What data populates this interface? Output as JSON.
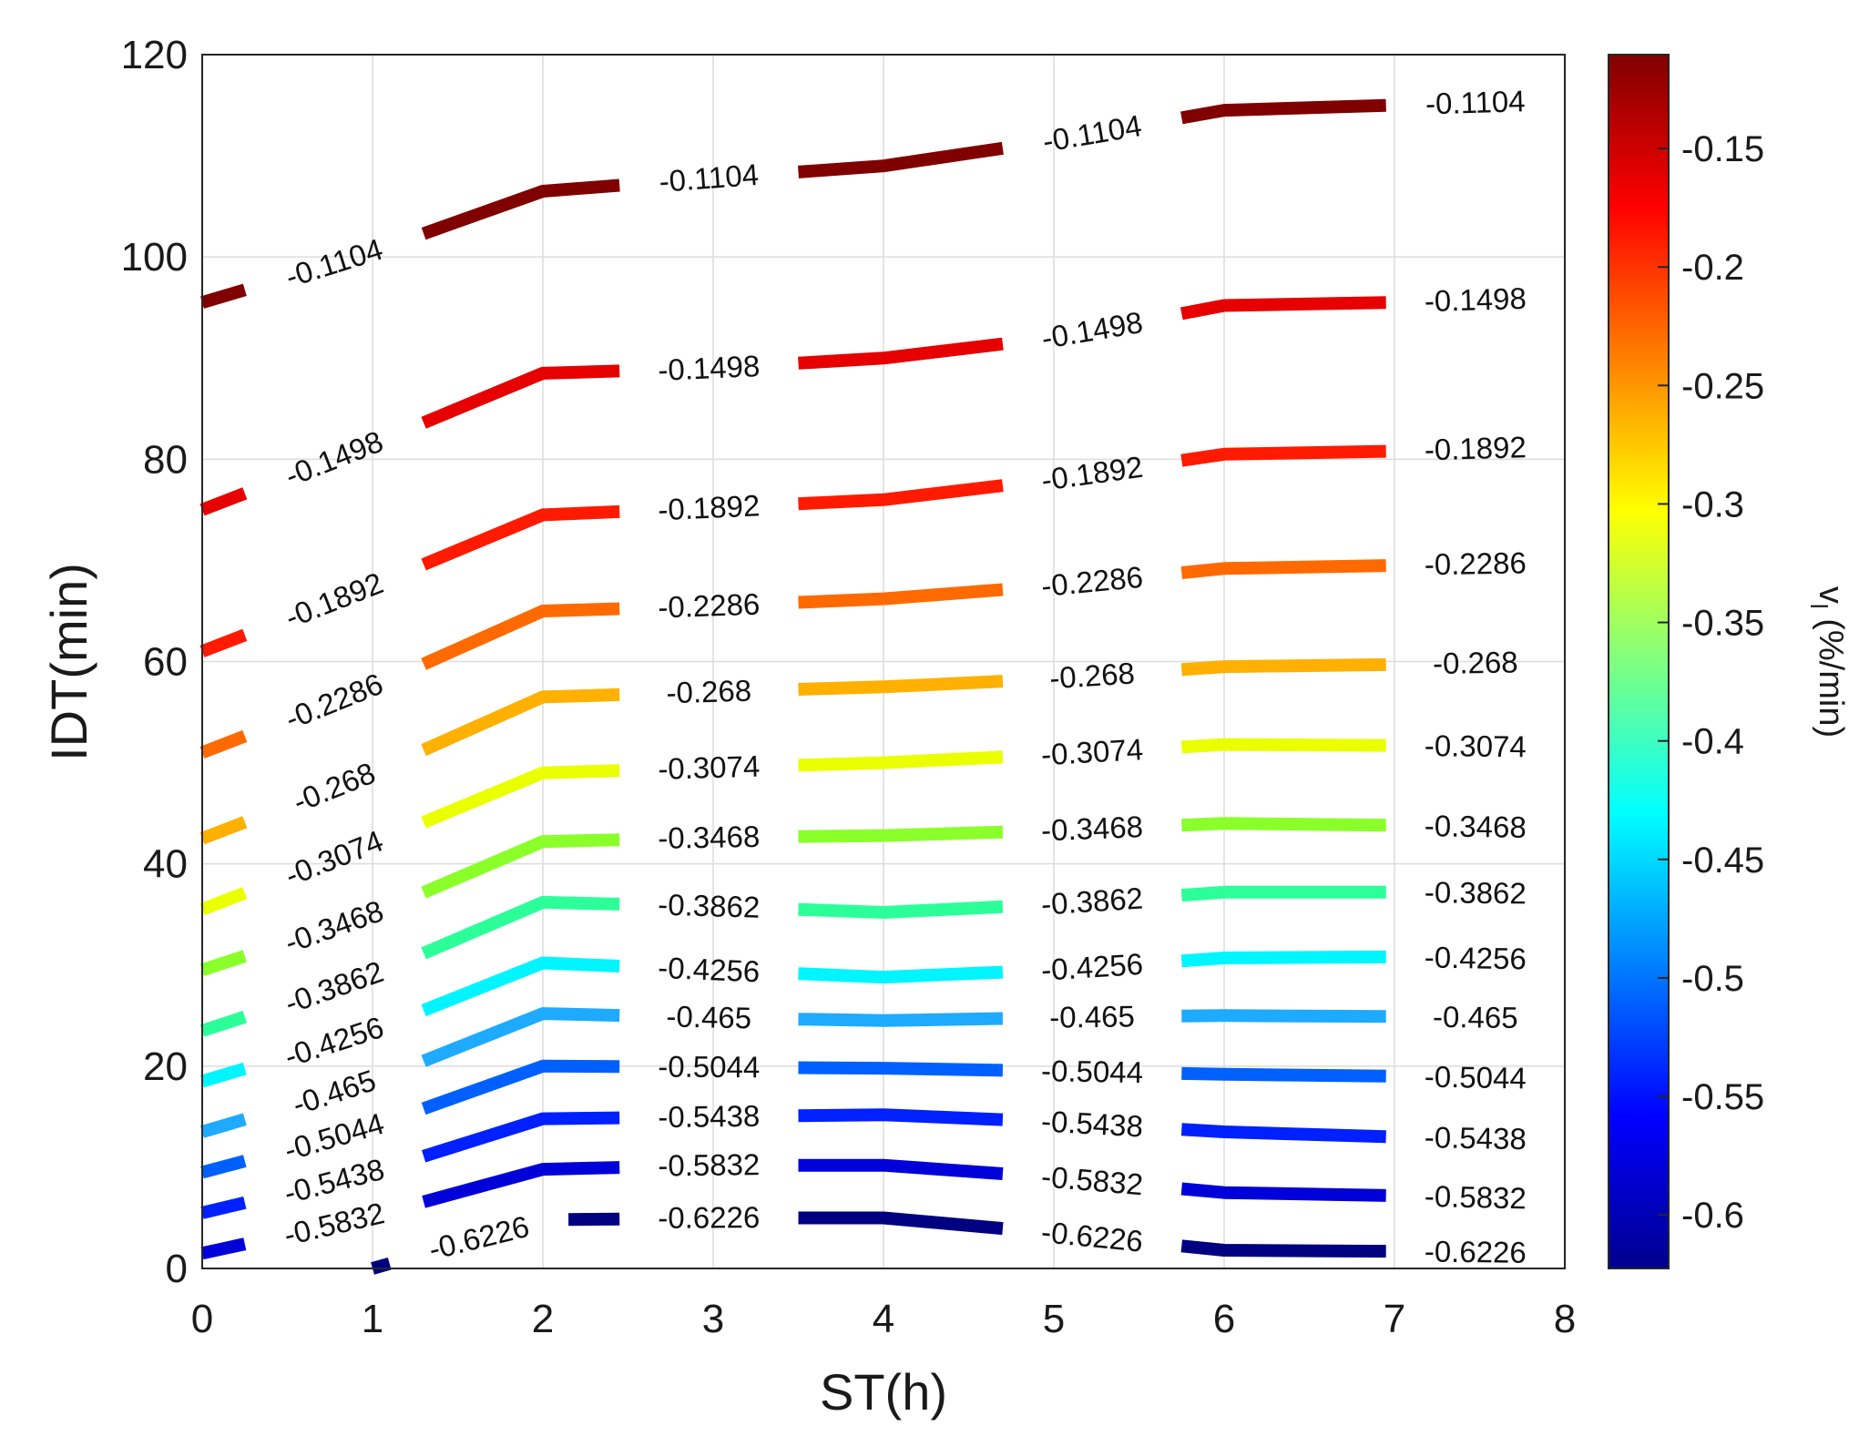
{
  "chart_data": {
    "type": "line",
    "subtype": "contour",
    "title": "",
    "xlabel": "ST(h)",
    "ylabel": "IDT(min)",
    "xlim": [
      0,
      8
    ],
    "ylim": [
      0,
      120
    ],
    "xticks": [
      "0",
      "1",
      "2",
      "3",
      "4",
      "5",
      "6",
      "7",
      "8"
    ],
    "yticks": [
      "0",
      "20",
      "40",
      "60",
      "80",
      "100",
      "120"
    ],
    "grid": true,
    "colorbar": {
      "label_main": "v",
      "label_sub": "l",
      "label_unit": " (%/min)",
      "range": [
        -0.6226,
        -0.1104
      ],
      "ticks": [
        "-0.15",
        "-0.2",
        "-0.25",
        "-0.3",
        "-0.35",
        "-0.4",
        "-0.45",
        "-0.5",
        "-0.55",
        "-0.6"
      ],
      "tick_values": [
        -0.15,
        -0.2,
        -0.25,
        -0.3,
        -0.35,
        -0.4,
        -0.45,
        -0.5,
        -0.55,
        -0.6
      ],
      "colormap": "jet"
    },
    "x": [
      0,
      1,
      2,
      3,
      4,
      5,
      6,
      7,
      8
    ],
    "series": [
      {
        "level": "-0.1104",
        "color": "#800000",
        "y": [
          95.5,
          100.5,
          106.5,
          107.8,
          109,
          111.5,
          114.5,
          115,
          115.5
        ]
      },
      {
        "level": "-0.1498",
        "color": "#e60000",
        "y": [
          75,
          81.5,
          88.5,
          89,
          90,
          92,
          95.2,
          95.5,
          96
        ]
      },
      {
        "level": "-0.1892",
        "color": "#ff1a00",
        "y": [
          61,
          67.5,
          74.5,
          75.2,
          76,
          78,
          80.5,
          80.8,
          81.3
        ]
      },
      {
        "level": "-0.2286",
        "color": "#ff6a00",
        "y": [
          51,
          57.5,
          65,
          65.5,
          66.2,
          67.5,
          69.2,
          69.5,
          69.8
        ]
      },
      {
        "level": "-0.268",
        "color": "#ffb000",
        "y": [
          42.5,
          49,
          56.5,
          57,
          57.5,
          58.3,
          59.5,
          59.7,
          60
        ]
      },
      {
        "level": "-0.3074",
        "color": "#eaff00",
        "y": [
          35.5,
          42,
          49,
          49.5,
          50,
          50.8,
          51.8,
          51.7,
          51.5
        ]
      },
      {
        "level": "-0.3468",
        "color": "#8aff2a",
        "y": [
          29.5,
          35,
          42.2,
          42.6,
          42.8,
          43.3,
          44,
          43.8,
          43.5
        ]
      },
      {
        "level": "-0.3862",
        "color": "#2cff9a",
        "y": [
          23.5,
          29,
          36.2,
          35.8,
          35.2,
          36,
          37.2,
          37.2,
          37
        ]
      },
      {
        "level": "-0.4256",
        "color": "#00f5ff",
        "y": [
          18.5,
          23.5,
          30.2,
          29.5,
          28.8,
          29.5,
          30.7,
          30.8,
          30.5
        ]
      },
      {
        "level": "-0.465",
        "color": "#1eaaff",
        "y": [
          13.5,
          18.5,
          25.2,
          24.8,
          24.5,
          24.8,
          25,
          24.9,
          24.7
        ]
      },
      {
        "level": "-0.5044",
        "color": "#0060ff",
        "y": [
          9.5,
          14,
          20,
          19.9,
          19.8,
          19.5,
          19.2,
          19,
          18.7
        ]
      },
      {
        "level": "-0.5438",
        "color": "#0020ff",
        "y": [
          5.5,
          9.5,
          14.8,
          15,
          15.2,
          14.5,
          13.5,
          13,
          12.7
        ]
      },
      {
        "level": "-0.5832",
        "color": "#0000d8",
        "y": [
          1.5,
          5.2,
          9.8,
          10.2,
          10.2,
          9,
          7.5,
          7.2,
          6.8
        ]
      },
      {
        "level": "-0.6226",
        "color": "#000080",
        "y": [
          null,
          0,
          4.8,
          5,
          5,
          3.5,
          1.8,
          1.7,
          1.5
        ]
      }
    ]
  }
}
